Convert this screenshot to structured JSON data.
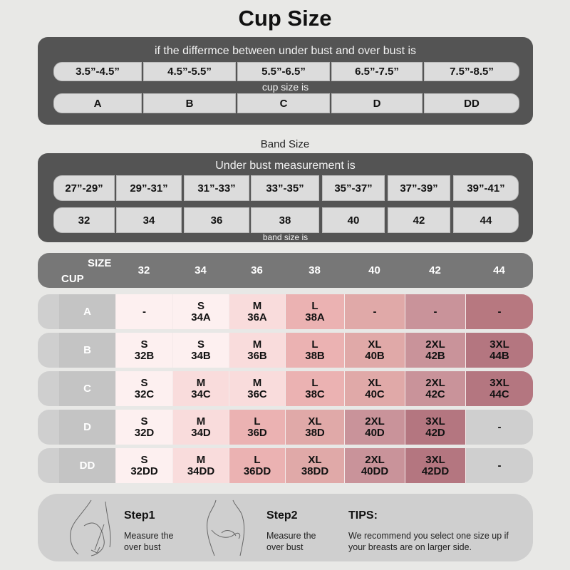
{
  "title": "Cup Size",
  "cup_panel": {
    "heading": "if the differmce between under bust and over bust is",
    "ranges": [
      "3.5”-4.5”",
      "4.5”-5.5”",
      "5.5”-6.5”",
      "6.5”-7.5”",
      "7.5”-8.5”"
    ],
    "sub": "cup size is",
    "cups": [
      "A",
      "B",
      "C",
      "D",
      "DD"
    ]
  },
  "band_label": "Band Size",
  "band_panel": {
    "heading": "Under bust measurement is",
    "ranges": [
      "27”-29”",
      "29”-31”",
      "31”-33”",
      "33”-35”",
      "35”-37”",
      "37”-39”",
      "39”-41”"
    ],
    "bands": [
      "32",
      "34",
      "36",
      "38",
      "40",
      "42",
      "44"
    ],
    "sub": "band size is"
  },
  "table": {
    "size_label": "SIZE",
    "cup_label": "CUP",
    "columns": [
      "32",
      "34",
      "36",
      "38",
      "40",
      "42",
      "44"
    ],
    "rows": [
      {
        "cup": "A",
        "cells": [
          [
            "-"
          ],
          [
            "S",
            "34A"
          ],
          [
            "M",
            "36A"
          ],
          [
            "L",
            "38A"
          ],
          [
            "-"
          ],
          [
            "-"
          ],
          [
            "-"
          ]
        ]
      },
      {
        "cup": "B",
        "cells": [
          [
            "S",
            "32B"
          ],
          [
            "S",
            "34B"
          ],
          [
            "M",
            "36B"
          ],
          [
            "L",
            "38B"
          ],
          [
            "XL",
            "40B"
          ],
          [
            "2XL",
            "42B"
          ],
          [
            "3XL",
            "44B"
          ]
        ]
      },
      {
        "cup": "C",
        "cells": [
          [
            "S",
            "32C"
          ],
          [
            "M",
            "34C"
          ],
          [
            "M",
            "36C"
          ],
          [
            "L",
            "38C"
          ],
          [
            "XL",
            "40C"
          ],
          [
            "2XL",
            "42C"
          ],
          [
            "3XL",
            "44C"
          ]
        ]
      },
      {
        "cup": "D",
        "cells": [
          [
            "S",
            "32D"
          ],
          [
            "M",
            "34D"
          ],
          [
            "L",
            "36D"
          ],
          [
            "XL",
            "38D"
          ],
          [
            "2XL",
            "40D"
          ],
          [
            "3XL",
            "42D"
          ],
          [
            "-"
          ]
        ]
      },
      {
        "cup": "DD",
        "cells": [
          [
            "S",
            "32DD"
          ],
          [
            "M",
            "34DD"
          ],
          [
            "L",
            "36DD"
          ],
          [
            "XL",
            "38DD"
          ],
          [
            "2XL",
            "40DD"
          ],
          [
            "3XL",
            "42DD"
          ],
          [
            "-"
          ]
        ]
      }
    ],
    "column_colors": [
      "#fdf0f0",
      "#fcedec",
      "#f9dcdc",
      "#ebb2b2",
      "#e0a9a8",
      "#c9939a",
      "#b77880"
    ],
    "size_colors": {
      "S": "#fdf0f0",
      "M": "#f9dcdc",
      "L": "#ebb2b2",
      "XL": "#e0a9a8",
      "2XL": "#c9939a",
      "3XL": "#b47680"
    }
  },
  "instructions": {
    "step1": {
      "title": "Step1",
      "text1": "Measure the",
      "text2": "over bust"
    },
    "step2": {
      "title": "Step2",
      "text1": "Measure the",
      "text2": "over bust"
    },
    "tips": {
      "title": "TIPS:",
      "text1": "We recommend you select one size up if",
      "text2": "your breasts are on larger side."
    }
  }
}
